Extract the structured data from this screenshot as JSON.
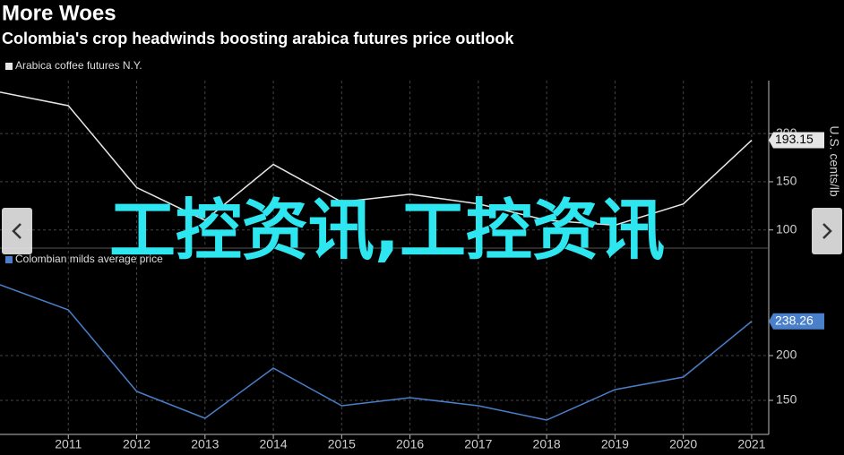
{
  "header": {
    "title": "More Woes",
    "subtitle": "Colombia's crop headwinds boosting arabica futures price outlook"
  },
  "watermark": "工控资讯,工控资讯",
  "chart_data": [
    {
      "type": "line",
      "y_label": "U.S. cents/lb",
      "x": [
        2010,
        2011,
        2012,
        2013,
        2014,
        2015,
        2016,
        2017,
        2018,
        2019,
        2020,
        2021
      ],
      "series": [
        {
          "name": "Arabica coffee futures N.Y.",
          "color": "#e6e6e6",
          "values": [
            243,
            229,
            144,
            110,
            168,
            129,
            137,
            127,
            110,
            105,
            127,
            193.15
          ]
        }
      ],
      "xlim": [
        2010,
        2021.25
      ],
      "ylim": [
        83,
        255
      ],
      "yticks": [
        100,
        150,
        200
      ],
      "grid": true
    },
    {
      "type": "line",
      "x": [
        2010,
        2011,
        2012,
        2013,
        2014,
        2015,
        2016,
        2017,
        2018,
        2019,
        2020,
        2021
      ],
      "series": [
        {
          "name": "Colombian milds average price",
          "color": "#4a7fc9",
          "values": [
            279,
            251,
            160,
            130,
            186,
            144,
            153,
            144,
            128,
            162,
            176,
            238.26
          ]
        }
      ],
      "xlim": [
        2010,
        2021.25
      ],
      "ylim": [
        112,
        317
      ],
      "yticks": [
        150,
        200
      ],
      "xticks": [
        2011,
        2012,
        2013,
        2014,
        2015,
        2016,
        2017,
        2018,
        2019,
        2020,
        2021
      ],
      "grid": true
    }
  ]
}
